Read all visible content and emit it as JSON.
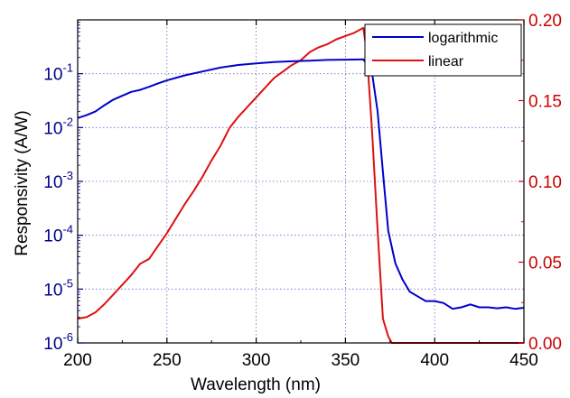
{
  "chart_data": {
    "type": "line",
    "xlabel": "Wavelength (nm)",
    "ylabel_left": "Responsivity (A/W)",
    "ylabel_right": "",
    "xlim": [
      200,
      450
    ],
    "ylim_left": [
      1e-06,
      1
    ],
    "yscale_left": "log",
    "ylim_right": [
      0,
      0.2
    ],
    "grid": true,
    "legend_position": "top-right",
    "x_ticks": [
      200,
      250,
      300,
      350,
      400,
      450
    ],
    "x_tick_labels": [
      "200",
      "250",
      "300",
      "350",
      "400",
      "450"
    ],
    "y_left_ticks": [
      1e-06,
      1e-05,
      0.0001,
      0.001,
      0.01,
      0.1
    ],
    "y_left_tick_labels": [
      {
        "base": "10",
        "exp": "-6"
      },
      {
        "base": "10",
        "exp": "-5"
      },
      {
        "base": "10",
        "exp": "-4"
      },
      {
        "base": "10",
        "exp": "-3"
      },
      {
        "base": "10",
        "exp": "-2"
      },
      {
        "base": "10",
        "exp": "-1"
      }
    ],
    "y_right_ticks": [
      0,
      0.05,
      0.1,
      0.15,
      0.2
    ],
    "y_right_tick_labels": [
      "0.00",
      "0.05",
      "0.10",
      "0.15",
      "0.20"
    ],
    "colors": {
      "left_axis": "#00008B",
      "right_axis": "#CC0000",
      "logarithmic": "#0000CC",
      "linear": "#DD1111",
      "grid": "#6a6ac8"
    },
    "series": [
      {
        "name": "logarithmic",
        "axis": "left",
        "x": [
          200,
          205,
          210,
          215,
          220,
          225,
          230,
          235,
          240,
          245,
          250,
          260,
          270,
          280,
          290,
          300,
          310,
          320,
          330,
          340,
          350,
          355,
          360,
          362,
          365,
          368,
          371,
          374,
          378,
          382,
          386,
          390,
          395,
          400,
          405,
          410,
          415,
          420,
          425,
          430,
          435,
          440,
          445,
          450
        ],
        "y": [
          0.015,
          0.017,
          0.02,
          0.026,
          0.033,
          0.039,
          0.046,
          0.05,
          0.057,
          0.066,
          0.075,
          0.093,
          0.11,
          0.13,
          0.145,
          0.155,
          0.165,
          0.17,
          0.175,
          0.18,
          0.182,
          0.183,
          0.185,
          0.15,
          0.1,
          0.02,
          0.0015,
          0.00012,
          3e-05,
          1.5e-05,
          9e-06,
          7.5e-06,
          6e-06,
          6e-06,
          5.5e-06,
          4.3e-06,
          4.6e-06,
          5.2e-06,
          4.6e-06,
          4.6e-06,
          4.4e-06,
          4.6e-06,
          4.3e-06,
          4.5e-06
        ]
      },
      {
        "name": "linear",
        "axis": "right",
        "x": [
          200,
          205,
          210,
          215,
          220,
          225,
          230,
          235,
          240,
          245,
          250,
          255,
          260,
          265,
          270,
          275,
          280,
          285,
          290,
          295,
          300,
          305,
          310,
          315,
          320,
          325,
          330,
          335,
          340,
          345,
          350,
          355,
          360,
          362,
          365,
          368,
          371,
          374,
          376,
          380,
          400,
          450
        ],
        "y": [
          0.015,
          0.016,
          0.019,
          0.024,
          0.03,
          0.036,
          0.042,
          0.049,
          0.052,
          0.06,
          0.068,
          0.077,
          0.086,
          0.094,
          0.103,
          0.113,
          0.122,
          0.133,
          0.14,
          0.146,
          0.152,
          0.158,
          0.164,
          0.168,
          0.172,
          0.175,
          0.18,
          0.183,
          0.185,
          0.188,
          0.19,
          0.192,
          0.195,
          0.18,
          0.13,
          0.07,
          0.015,
          0.004,
          0.0,
          0.0,
          0.0,
          0.0
        ]
      }
    ]
  }
}
